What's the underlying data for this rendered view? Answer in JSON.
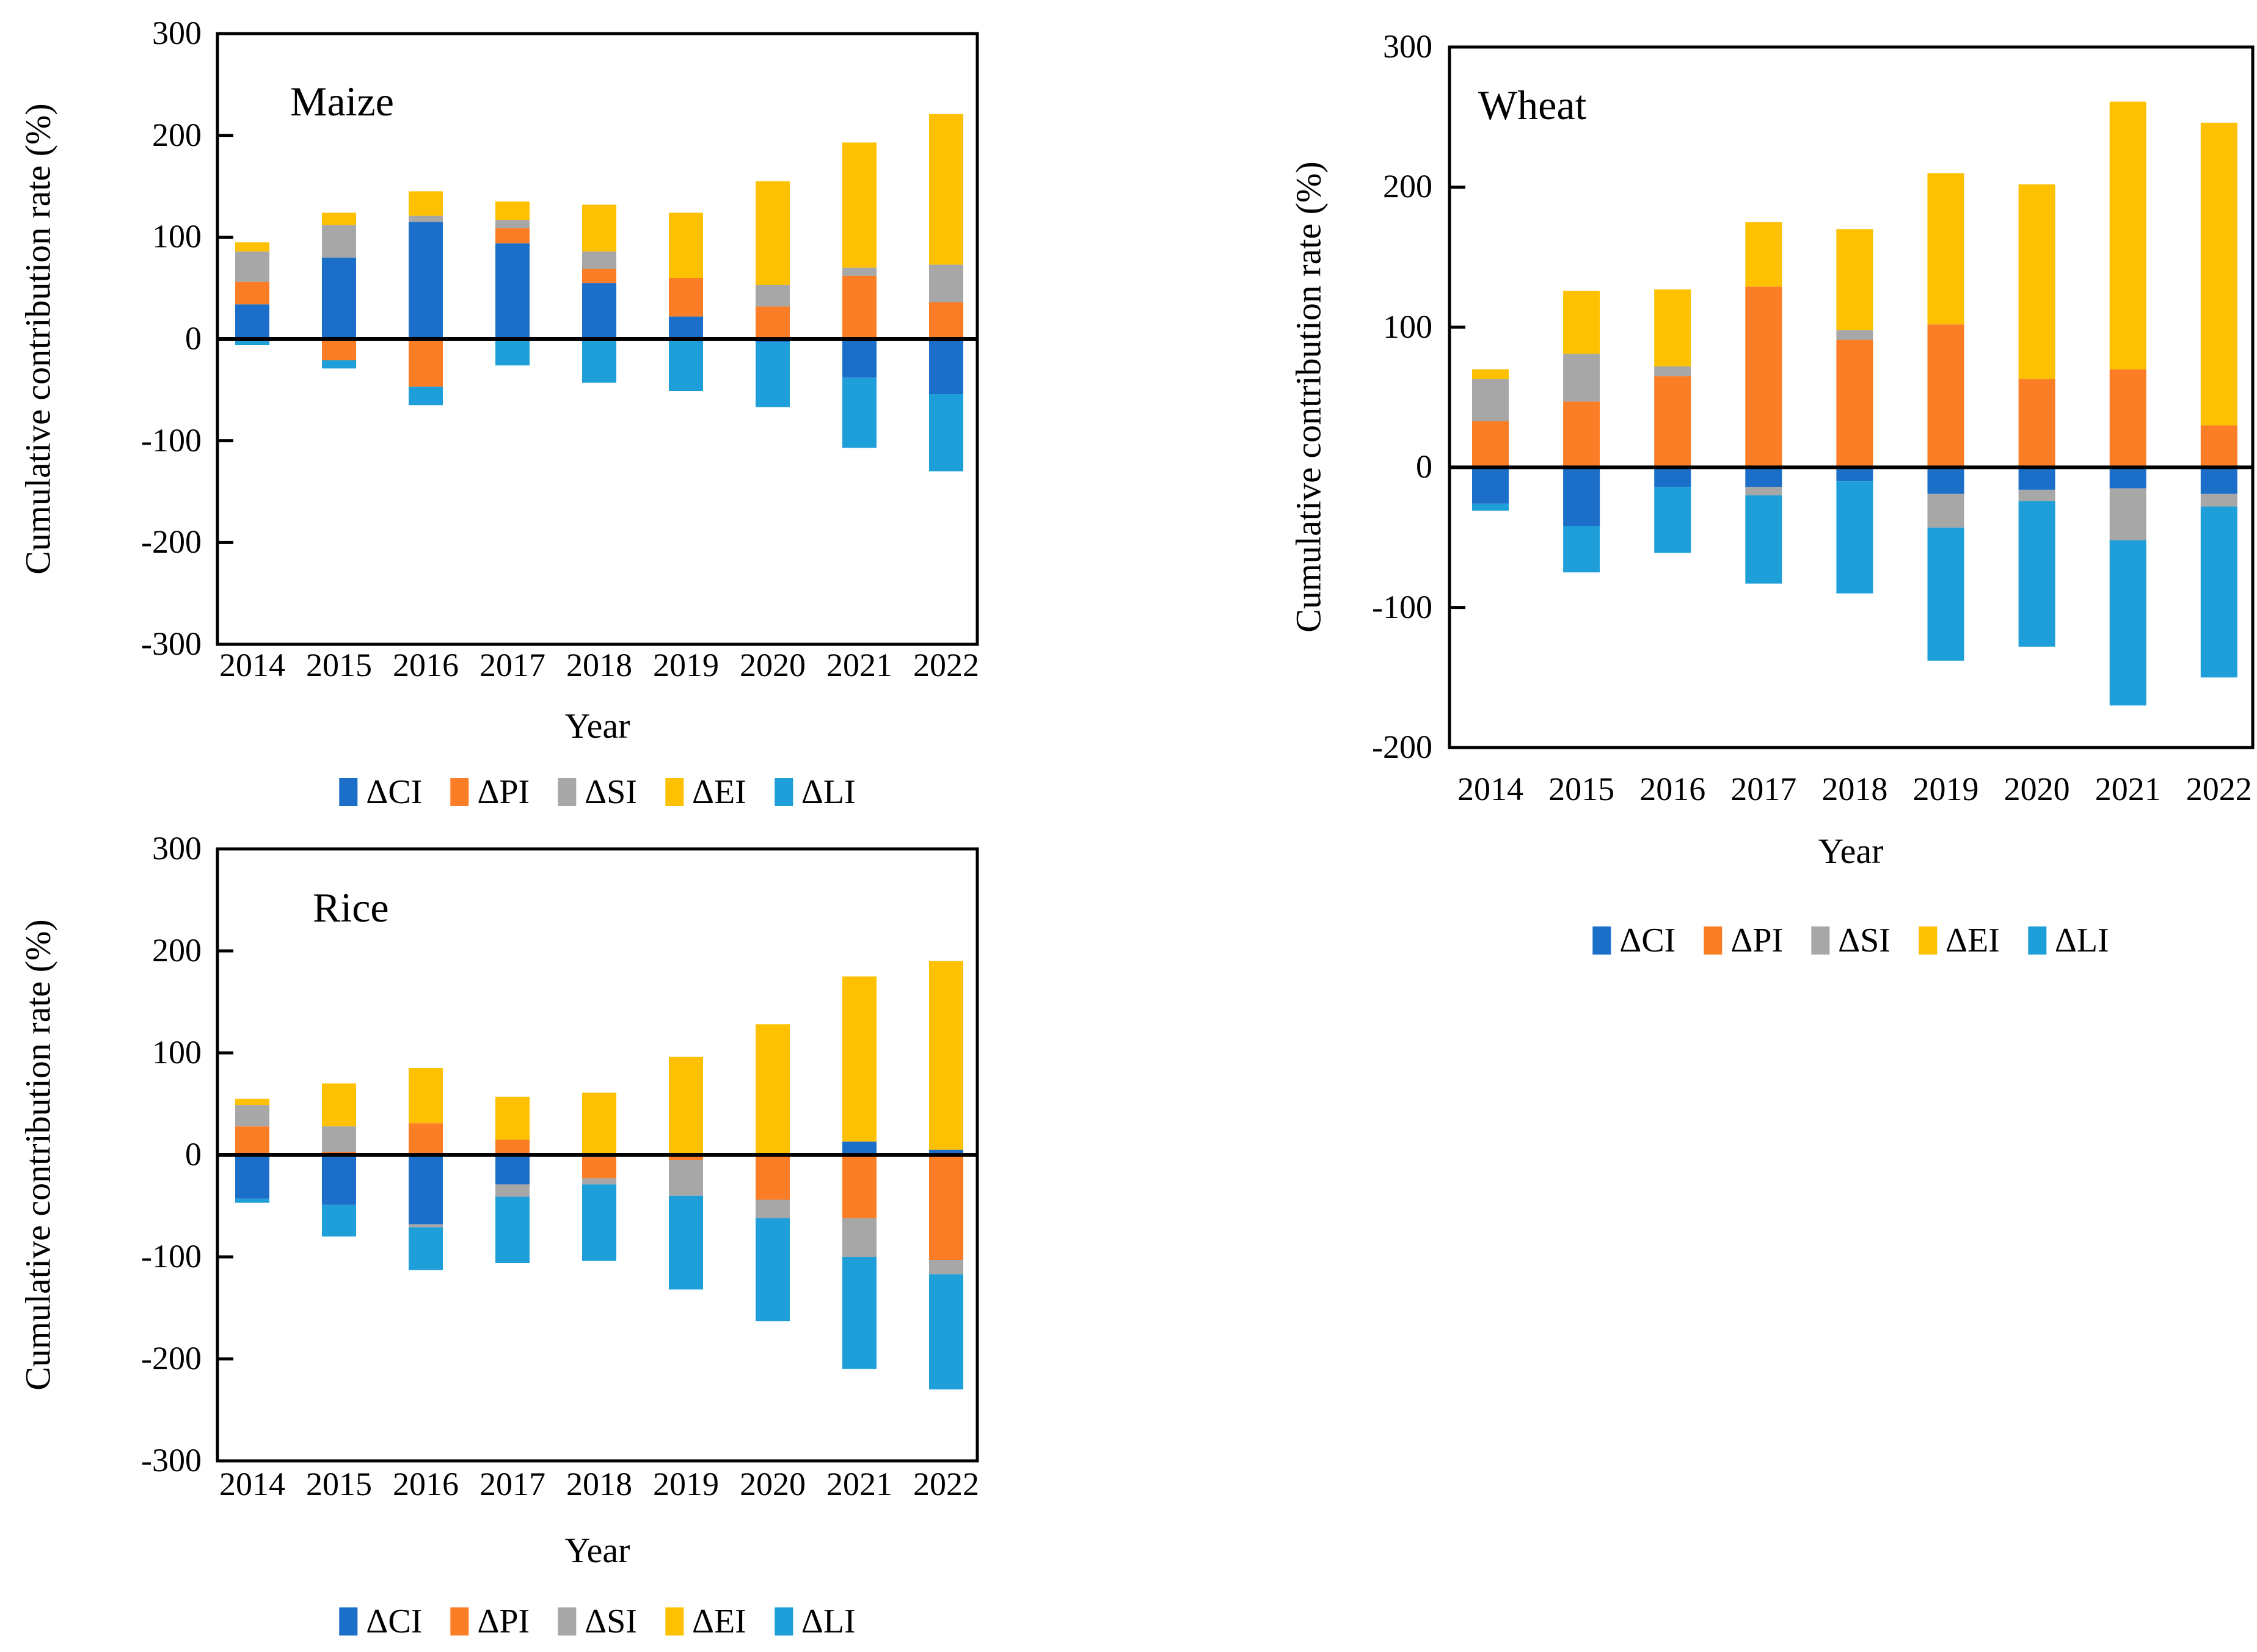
{
  "page": {
    "background": "#ffffff"
  },
  "colors": {
    "CI": "#1B6FC8",
    "PI": "#FB7D25",
    "SI": "#A7A7A7",
    "EI": "#FEC101",
    "LI": "#1F9FD9",
    "axis": "#000000"
  },
  "legend": [
    {
      "label": "ΔCI",
      "key": "CI"
    },
    {
      "label": "ΔPI",
      "key": "PI"
    },
    {
      "label": "ΔSI",
      "key": "SI"
    },
    {
      "label": "ΔEI",
      "key": "EI"
    },
    {
      "label": "ΔLI",
      "key": "LI"
    }
  ],
  "chart_data": [
    {
      "type": "bar",
      "stacked": true,
      "title": "Maize",
      "xlabel": "Year",
      "ylabel": "Cumulative contribution rate (%)",
      "categories": [
        "2014",
        "2015",
        "2016",
        "2017",
        "2018",
        "2019",
        "2020",
        "2021",
        "2022"
      ],
      "ylim": [
        -300,
        300
      ],
      "yticks": [
        300,
        200,
        100,
        0,
        -100,
        -200,
        -300
      ],
      "grid": false,
      "legend_position": "bottom",
      "series": [
        {
          "name": "ΔCI",
          "key": "CI",
          "values": [
            34,
            80,
            115,
            94,
            55,
            22,
            -3,
            -38,
            -54
          ]
        },
        {
          "name": "ΔPI",
          "key": "PI",
          "values": [
            22,
            -21,
            -47,
            15,
            14,
            38,
            32,
            62,
            36
          ]
        },
        {
          "name": "ΔSI",
          "key": "SI",
          "values": [
            30,
            32,
            6,
            8,
            17,
            0,
            21,
            8,
            37
          ]
        },
        {
          "name": "ΔEI",
          "key": "EI",
          "values": [
            9,
            12,
            24,
            18,
            46,
            64,
            102,
            123,
            148
          ]
        },
        {
          "name": "ΔLI",
          "key": "LI",
          "values": [
            -6,
            -8,
            -18,
            -26,
            -43,
            -51,
            -64,
            -69,
            -76
          ]
        }
      ]
    },
    {
      "type": "bar",
      "stacked": true,
      "title": "Wheat",
      "xlabel": "Year",
      "ylabel": "Cumulative contribution rate (%)",
      "categories": [
        "2014",
        "2015",
        "2016",
        "2017",
        "2018",
        "2019",
        "2020",
        "2021",
        "2022"
      ],
      "ylim": [
        -200,
        300
      ],
      "yticks": [
        300,
        200,
        100,
        0,
        -100,
        -200
      ],
      "grid": false,
      "legend_position": "bottom",
      "series": [
        {
          "name": "ΔCI",
          "key": "CI",
          "values": [
            -26,
            -42,
            -14,
            -14,
            -10,
            -19,
            -16,
            -15,
            -19
          ]
        },
        {
          "name": "ΔPI",
          "key": "PI",
          "values": [
            33,
            47,
            65,
            129,
            91,
            102,
            63,
            70,
            30
          ]
        },
        {
          "name": "ΔSI",
          "key": "SI",
          "values": [
            30,
            34,
            7,
            -6,
            7,
            -24,
            -8,
            -37,
            -9
          ]
        },
        {
          "name": "ΔEI",
          "key": "EI",
          "values": [
            7,
            45,
            55,
            46,
            72,
            108,
            139,
            191,
            216
          ]
        },
        {
          "name": "ΔLI",
          "key": "LI",
          "values": [
            -5,
            -33,
            -47,
            -63,
            -80,
            -95,
            -104,
            -118,
            -122
          ]
        }
      ]
    },
    {
      "type": "bar",
      "stacked": true,
      "title": "Rice",
      "xlabel": "Year",
      "ylabel": "Cumulative contribution rate (%)",
      "categories": [
        "2014",
        "2015",
        "2016",
        "2017",
        "2018",
        "2019",
        "2020",
        "2021",
        "2022"
      ],
      "ylim": [
        -300,
        300
      ],
      "yticks": [
        300,
        200,
        100,
        0,
        -100,
        -200,
        -300
      ],
      "grid": false,
      "legend_position": "bottom",
      "series": [
        {
          "name": "ΔCI",
          "key": "CI",
          "values": [
            -43,
            -49,
            -68,
            -29,
            -2,
            0,
            0,
            13,
            5
          ]
        },
        {
          "name": "ΔPI",
          "key": "PI",
          "values": [
            28,
            3,
            31,
            15,
            -21,
            -5,
            -44,
            -62,
            -103
          ]
        },
        {
          "name": "ΔSI",
          "key": "SI",
          "values": [
            21,
            25,
            -3,
            -12,
            -6,
            -35,
            -18,
            -38,
            -14
          ]
        },
        {
          "name": "ΔEI",
          "key": "EI",
          "values": [
            6,
            42,
            54,
            42,
            61,
            96,
            128,
            162,
            185
          ]
        },
        {
          "name": "ΔLI",
          "key": "LI",
          "values": [
            -4,
            -31,
            -42,
            -65,
            -75,
            -92,
            -101,
            -110,
            -113
          ]
        }
      ]
    }
  ]
}
